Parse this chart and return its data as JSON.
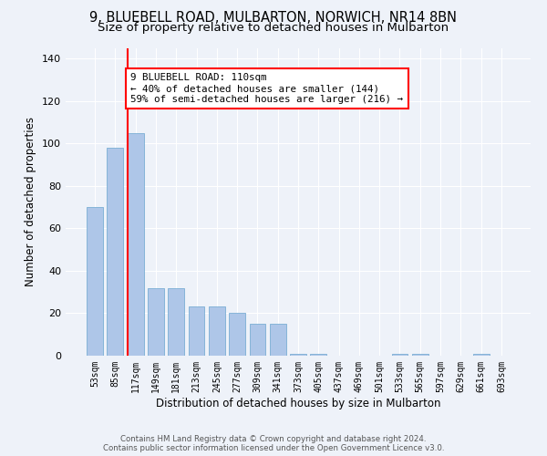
{
  "title1": "9, BLUEBELL ROAD, MULBARTON, NORWICH, NR14 8BN",
  "title2": "Size of property relative to detached houses in Mulbarton",
  "xlabel": "Distribution of detached houses by size in Mulbarton",
  "ylabel": "Number of detached properties",
  "categories": [
    "53sqm",
    "85sqm",
    "117sqm",
    "149sqm",
    "181sqm",
    "213sqm",
    "245sqm",
    "277sqm",
    "309sqm",
    "341sqm",
    "373sqm",
    "405sqm",
    "437sqm",
    "469sqm",
    "501sqm",
    "533sqm",
    "565sqm",
    "597sqm",
    "629sqm",
    "661sqm",
    "693sqm"
  ],
  "values": [
    70,
    98,
    105,
    32,
    32,
    23,
    23,
    20,
    15,
    15,
    1,
    1,
    0,
    0,
    0,
    1,
    1,
    0,
    0,
    1,
    0
  ],
  "bar_color": "#aec6e8",
  "bar_edge_color": "#7aaed4",
  "annotation_text": "9 BLUEBELL ROAD: 110sqm\n← 40% of detached houses are smaller (144)\n59% of semi-detached houses are larger (216) →",
  "annotation_box_color": "white",
  "annotation_box_edge_color": "red",
  "red_line_color": "red",
  "ylim": [
    0,
    145
  ],
  "yticks": [
    0,
    20,
    40,
    60,
    80,
    100,
    120,
    140
  ],
  "footer1": "Contains HM Land Registry data © Crown copyright and database right 2024.",
  "footer2": "Contains public sector information licensed under the Open Government Licence v3.0.",
  "bg_color": "#eef2f9",
  "grid_color": "#ffffff",
  "title_fontsize": 10.5,
  "subtitle_fontsize": 9.5
}
